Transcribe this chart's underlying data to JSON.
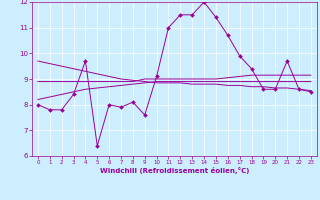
{
  "xlabel": "Windchill (Refroidissement éolien,°C)",
  "background_color": "#cceeff",
  "line_color": "#990099",
  "xlim": [
    -0.5,
    23.5
  ],
  "ylim": [
    6,
    12
  ],
  "xticks": [
    0,
    1,
    2,
    3,
    4,
    5,
    6,
    7,
    8,
    9,
    10,
    11,
    12,
    13,
    14,
    15,
    16,
    17,
    18,
    19,
    20,
    21,
    22,
    23
  ],
  "yticks": [
    6,
    7,
    8,
    9,
    10,
    11,
    12
  ],
  "x": [
    0,
    1,
    2,
    3,
    4,
    5,
    6,
    7,
    8,
    9,
    10,
    11,
    12,
    13,
    14,
    15,
    16,
    17,
    18,
    19,
    20,
    21,
    22,
    23
  ],
  "y_main": [
    8.0,
    7.8,
    7.8,
    8.4,
    9.7,
    6.4,
    8.0,
    7.9,
    8.1,
    7.6,
    9.1,
    11.0,
    11.5,
    11.5,
    12.0,
    11.4,
    10.7,
    9.9,
    9.4,
    8.6,
    8.6,
    9.7,
    8.6,
    8.5
  ],
  "y_reg1": [
    8.9,
    8.9,
    8.9,
    8.9,
    8.9,
    8.9,
    8.9,
    8.9,
    8.9,
    9.0,
    9.0,
    9.0,
    9.0,
    9.0,
    9.0,
    9.0,
    9.05,
    9.1,
    9.15,
    9.15,
    9.15,
    9.15,
    9.15,
    9.15
  ],
  "y_reg2": [
    9.7,
    9.6,
    9.5,
    9.4,
    9.3,
    9.2,
    9.1,
    9.0,
    8.95,
    8.9,
    8.85,
    8.85,
    8.85,
    8.8,
    8.8,
    8.8,
    8.75,
    8.75,
    8.7,
    8.7,
    8.65,
    8.65,
    8.6,
    8.55
  ],
  "y_reg3": [
    8.2,
    8.3,
    8.4,
    8.5,
    8.6,
    8.65,
    8.7,
    8.75,
    8.8,
    8.85,
    8.9,
    8.9,
    8.9,
    8.9,
    8.9,
    8.9,
    8.9,
    8.9,
    8.9,
    8.9,
    8.9,
    8.9,
    8.9,
    8.9
  ]
}
